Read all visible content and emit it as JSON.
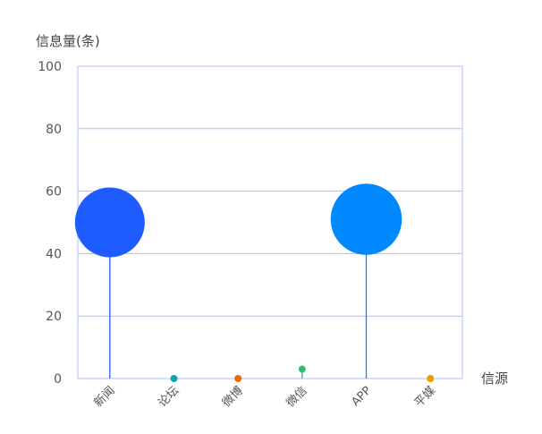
{
  "chart_data": {
    "type": "scatter",
    "subtype": "lollipop",
    "ylabel": "信息量(条)",
    "xlabel": "信源",
    "categories": [
      "新闻",
      "论坛",
      "微博",
      "微信",
      "APP",
      "平媒"
    ],
    "values": [
      50,
      0,
      0,
      3,
      51,
      0
    ],
    "colors": [
      "#1f5cff",
      "#0aa4ad",
      "#f06a00",
      "#2ebf6a",
      "#0088ff",
      "#f29a00"
    ],
    "ylim": [
      0,
      100
    ],
    "yticks": [
      0,
      20,
      40,
      60,
      80,
      100
    ],
    "grid": true,
    "gridColor": "#a9c0ff"
  }
}
